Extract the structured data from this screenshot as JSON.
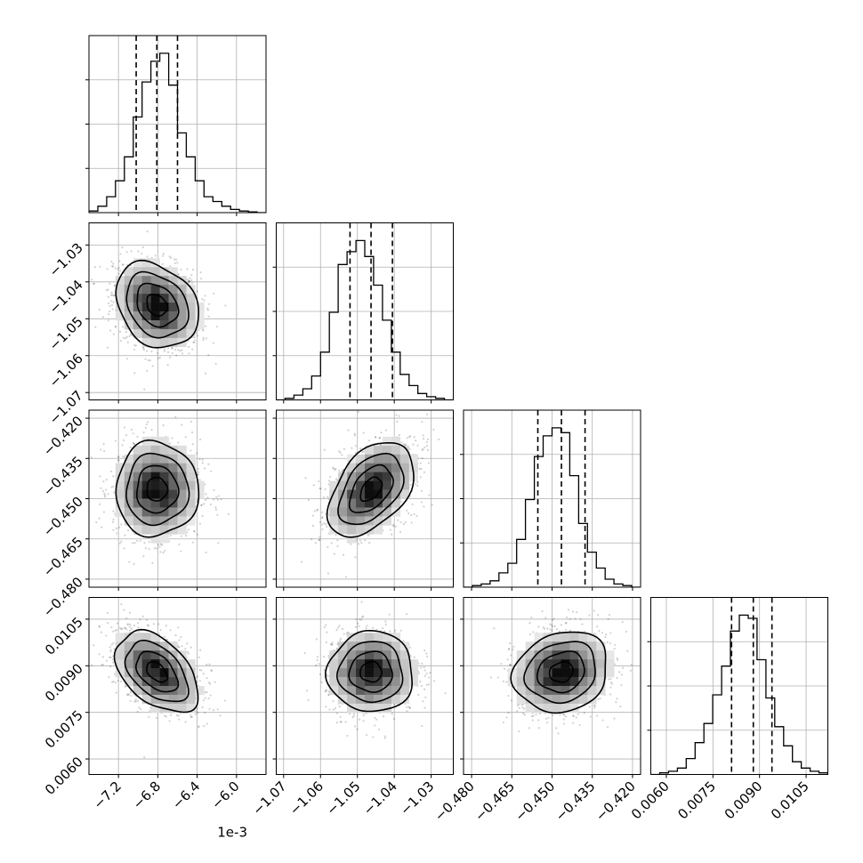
{
  "chart_data": {
    "type": "corner",
    "grid": true,
    "n_params": 4,
    "offset_label": "1e-3",
    "params": [
      {
        "range": [
          -7.5,
          -5.7
        ],
        "ticks": [
          -7.2,
          -6.8,
          -6.4,
          -6.0
        ],
        "tick_labels": [
          "−7.2",
          "−6.8",
          "−6.4",
          "−6.0"
        ],
        "quantiles": [
          -7.02,
          -6.81,
          -6.6
        ],
        "mean": -6.81,
        "std": 0.21,
        "hist": [
          0.01,
          0.04,
          0.1,
          0.2,
          0.35,
          0.6,
          0.82,
          0.95,
          1.0,
          0.8,
          0.5,
          0.35,
          0.2,
          0.1,
          0.07,
          0.04,
          0.02,
          0.01,
          0.005,
          0
        ]
      },
      {
        "range": [
          -1.072,
          -1.024
        ],
        "ticks": [
          -1.07,
          -1.06,
          -1.05,
          -1.04,
          -1.03
        ],
        "tick_labels": [
          "−1.07",
          "−1.06",
          "−1.05",
          "−1.04",
          "−1.03"
        ],
        "quantiles": [
          -1.052,
          -1.0463,
          -1.0405
        ],
        "mean": -1.0463,
        "std": 0.0058,
        "hist": [
          0,
          0.01,
          0.03,
          0.07,
          0.15,
          0.3,
          0.55,
          0.85,
          0.93,
          1.0,
          0.9,
          0.72,
          0.5,
          0.3,
          0.16,
          0.09,
          0.04,
          0.02,
          0.01,
          0
        ]
      },
      {
        "range": [
          -0.483,
          -0.417
        ],
        "ticks": [
          -0.48,
          -0.465,
          -0.45,
          -0.435,
          -0.42
        ],
        "tick_labels": [
          "−0.480",
          "−0.465",
          "−0.450",
          "−0.435",
          "−0.420"
        ],
        "quantiles": [
          -0.4553,
          -0.4465,
          -0.4377
        ],
        "mean": -0.4465,
        "std": 0.0088,
        "hist": [
          0,
          0.01,
          0.02,
          0.04,
          0.09,
          0.15,
          0.3,
          0.55,
          0.82,
          0.95,
          1.0,
          0.97,
          0.7,
          0.4,
          0.22,
          0.12,
          0.05,
          0.02,
          0.01,
          0
        ]
      },
      {
        "range": [
          0.0055,
          0.0112
        ],
        "ticks": [
          0.006,
          0.0075,
          0.009,
          0.0105
        ],
        "tick_labels": [
          "0.0060",
          "0.0075",
          "0.0090",
          "0.0105"
        ],
        "quantiles": [
          0.0081,
          0.0088,
          0.0094
        ],
        "mean": 0.0088,
        "std": 0.00065,
        "hist": [
          0,
          0.01,
          0.02,
          0.04,
          0.1,
          0.2,
          0.32,
          0.5,
          0.68,
          0.9,
          1.0,
          0.98,
          0.72,
          0.48,
          0.3,
          0.18,
          0.08,
          0.04,
          0.02,
          0.01
        ]
      }
    ],
    "correlations": [
      {
        "pair": [
          1,
          0
        ],
        "rho": -0.25
      },
      {
        "pair": [
          2,
          0
        ],
        "rho": 0.0
      },
      {
        "pair": [
          2,
          1
        ],
        "rho": 0.45
      },
      {
        "pair": [
          3,
          0
        ],
        "rho": -0.45
      },
      {
        "pair": [
          3,
          1
        ],
        "rho": 0.0
      },
      {
        "pair": [
          3,
          2
        ],
        "rho": 0.15
      }
    ],
    "contour_levels": [
      0.5,
      1.0,
      1.5,
      2.0
    ]
  }
}
